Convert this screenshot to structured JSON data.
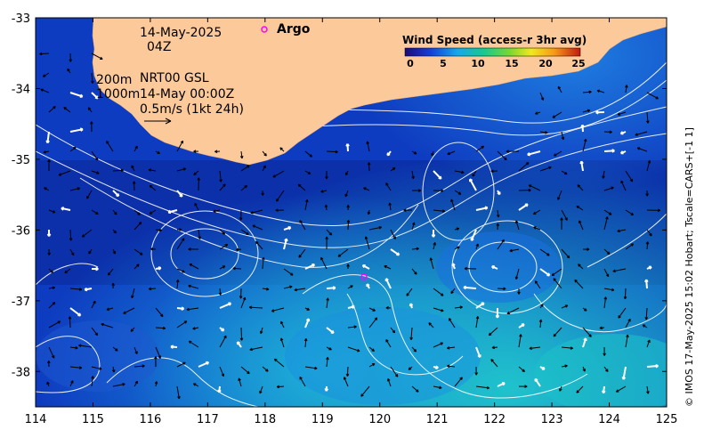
{
  "map": {
    "lon_range": [
      114,
      125
    ],
    "lat_range": [
      -38.5,
      -33
    ],
    "x_ticks": [
      "114",
      "115",
      "116",
      "117",
      "118",
      "119",
      "120",
      "121",
      "122",
      "123",
      "124",
      "125"
    ],
    "y_ticks": [
      "-33",
      "-34",
      "-35",
      "-36",
      "-37",
      "-38"
    ],
    "colors": {
      "land": "#fbc99a",
      "ocean_deep": "#0a2a9e",
      "ocean_mid": "#1e6fd8",
      "ocean_light": "#19b7d8",
      "contour": "#ffffff",
      "argo": "#ff00ff"
    }
  },
  "annotations": {
    "date": "14-May-2025",
    "time": "04Z",
    "depth1": "200m",
    "depth1_desc": "NRT00 GSL",
    "depth2": "1000m",
    "depth2_desc": "14-May 00:00Z",
    "scale": "0.5m/s (1kt 24h)"
  },
  "legend": {
    "title": "Wind Speed (access-r 3hr avg)",
    "ticks": [
      "0",
      "5",
      "10",
      "15",
      "20",
      "25"
    ],
    "argo_label": "Argo"
  },
  "credit": "© IMOS 17-May-2025 15:02 Hobart; Tscale=CARS+[-1 1]"
}
